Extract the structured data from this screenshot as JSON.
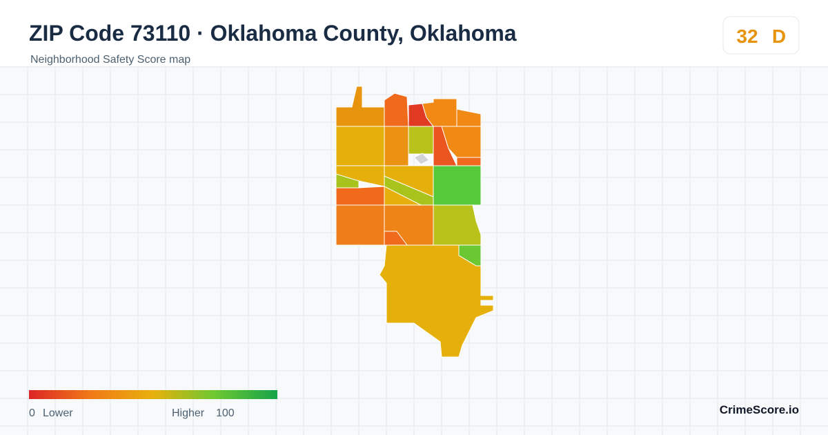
{
  "header": {
    "title": "ZIP Code 73110 · Oklahoma County, Oklahoma",
    "subtitle": "Neighborhood Safety Score map"
  },
  "score": {
    "value": 32,
    "grade": "D"
  },
  "legend": {
    "min": 0,
    "min_label": "Lower",
    "max_label": "Higher",
    "max": 100
  },
  "brand": "CrimeScore.io"
}
